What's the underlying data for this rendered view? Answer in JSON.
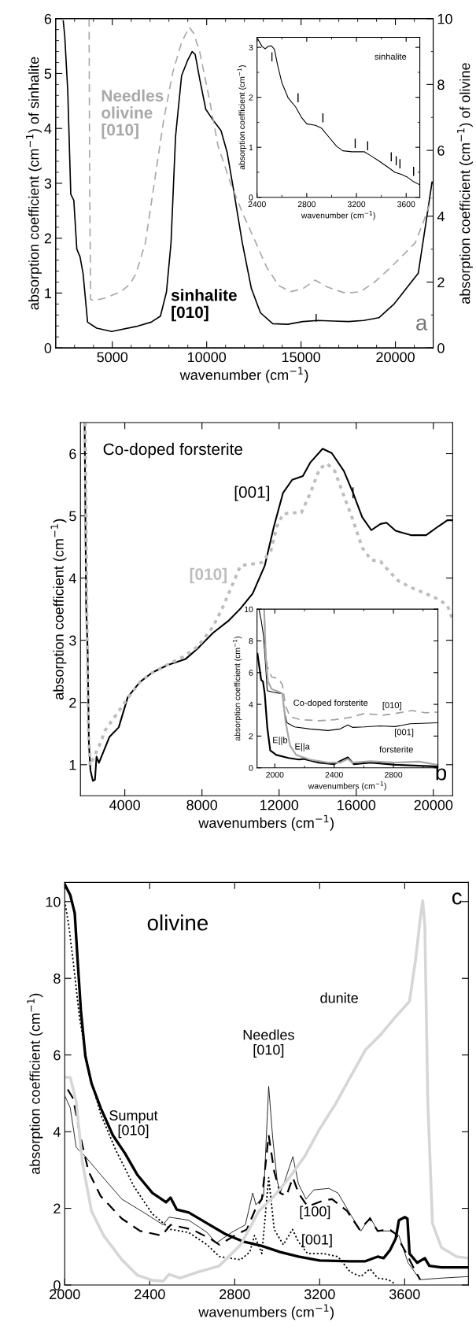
{
  "chart_data": [
    {
      "type": "line",
      "xlabel": "wavenumber (cm$^{−1}$)",
      "ylabel": "absorption coefficient (cm$^{−1}$) of sinhalite",
      "y2label": "absorption coefficient (cm$^{−1}$) of olivine",
      "xlim": [
        2000,
        22000
      ],
      "ylim": [
        0,
        6
      ],
      "y2lim": [
        0,
        10
      ],
      "xticks": [
        {
          "value": 3000,
          "label": null
        },
        {
          "value": 4000,
          "label": null
        },
        5000,
        {
          "value": 6000,
          "label": null
        },
        {
          "value": 7000,
          "label": null
        },
        {
          "value": 8000,
          "label": null
        },
        {
          "value": 9000,
          "label": null
        },
        10000,
        {
          "value": 11000,
          "label": null
        },
        {
          "value": 12000,
          "label": null
        },
        {
          "value": 13000,
          "label": null
        },
        {
          "value": 14000,
          "label": null
        },
        15000,
        {
          "value": 16000,
          "label": null
        },
        {
          "value": 17000,
          "label": null
        },
        {
          "value": 18000,
          "label": null
        },
        {
          "value": 19000,
          "label": null
        },
        20000,
        {
          "value": 21000,
          "label": null
        }
      ],
      "yticks": [
        0,
        {
          "value": 0.2,
          "label": null
        },
        {
          "value": 0.4,
          "label": null
        },
        {
          "value": 0.6,
          "label": null
        },
        {
          "value": 0.8,
          "label": null
        },
        1,
        {
          "value": 1.2,
          "label": null
        },
        {
          "value": 1.4,
          "label": null
        },
        {
          "value": 1.6,
          "label": null
        },
        {
          "value": 1.8,
          "label": null
        },
        2,
        {
          "value": 2.2,
          "label": null
        },
        {
          "value": 2.4,
          "label": null
        },
        {
          "value": 2.6,
          "label": null
        },
        {
          "value": 2.8,
          "label": null
        },
        3,
        {
          "value": 3.2,
          "label": null
        },
        {
          "value": 3.4,
          "label": null
        },
        {
          "value": 3.6,
          "label": null
        },
        {
          "value": 3.8,
          "label": null
        },
        4,
        {
          "value": 4.2,
          "label": null
        },
        {
          "value": 4.4,
          "label": null
        },
        {
          "value": 4.6,
          "label": null
        },
        {
          "value": 4.8,
          "label": null
        },
        5,
        {
          "value": 5.2,
          "label": null
        },
        {
          "value": 5.4,
          "label": null
        },
        {
          "value": 5.6,
          "label": null
        },
        {
          "value": 5.8,
          "label": null
        },
        6
      ],
      "y2ticks": [
        0,
        {
          "value": 1,
          "label": null
        },
        2,
        {
          "value": 3,
          "label": null
        },
        4,
        {
          "value": 5,
          "label": null
        },
        6,
        {
          "value": 7,
          "label": null
        },
        8,
        {
          "value": 9,
          "label": null
        },
        10
      ],
      "series": [
        {
          "name": "sinhalite\n[010]",
          "color": "#000000",
          "line_style": "solid",
          "x": [
            2400,
            2480,
            2640,
            2800,
            2960,
            3120,
            3290,
            3450,
            3690,
            4170,
            4970,
            6260,
            7060,
            7550,
            7870,
            8110,
            8350,
            8670,
            8990,
            9230,
            9390,
            9630,
            9950,
            10280,
            10760,
            11080,
            11410,
            11890,
            12370,
            12850,
            13500,
            14300,
            15100,
            15910,
            16710,
            17520,
            18320,
            19120,
            19930,
            20570,
            21210,
            21700,
            21940
          ],
          "values": [
            5.96,
            5.68,
            4.68,
            2.8,
            2.69,
            1.8,
            1.66,
            1.36,
            0.47,
            0.36,
            0.3,
            0.39,
            0.47,
            0.58,
            1.02,
            1.91,
            3.85,
            4.96,
            5.24,
            5.4,
            5.35,
            4.9,
            4.35,
            4.18,
            3.96,
            3.57,
            2.91,
            1.91,
            1.08,
            0.64,
            0.44,
            0.43,
            0.48,
            0.5,
            0.49,
            0.48,
            0.5,
            0.55,
            0.8,
            1.08,
            1.36,
            2.47,
            3.02
          ]
        },
        {
          "name": "Needles\nolivine\n[010]",
          "color": "#a8a8a8",
          "line_style": "dashed",
          "axis": "y2",
          "x": [
            3770,
            3800,
            3850,
            4010,
            4650,
            5460,
            5940,
            6260,
            6750,
            7230,
            7710,
            8200,
            8670,
            9070,
            9310,
            9630,
            10120,
            10600,
            11250,
            11890,
            12540,
            13180,
            13820,
            14470,
            15100,
            15750,
            16390,
            17360,
            18160,
            18960,
            19760,
            20410,
            21050,
            21540,
            21940
          ],
          "values": [
            10.0,
            5.03,
            1.48,
            1.43,
            1.52,
            1.71,
            1.94,
            2.26,
            3.19,
            5.03,
            6.88,
            8.36,
            9.28,
            9.74,
            9.56,
            9.0,
            7.62,
            6.14,
            5.03,
            4.11,
            3.28,
            2.45,
            1.89,
            1.71,
            1.8,
            2.06,
            1.85,
            1.66,
            1.71,
            2.03,
            2.45,
            2.82,
            3.19,
            3.92,
            4.57
          ]
        },
        {
          "line_style": "solid",
          "color": "#000000",
          "x": [
            15800,
            15800
          ],
          "values": [
            0.49,
            0.61
          ]
        }
      ],
      "annotations": [
        "a"
      ]
    },
    {
      "type": "line",
      "xlabel": "wavenumber (cm$^{−1}$)",
      "ylabel": "absorption coefficient (cm$^{−1}$)",
      "xlim": [
        2400,
        3710
      ],
      "ylim": [
        0,
        3.2
      ],
      "xticks": [
        2400,
        {
          "value": 2600,
          "label": null
        },
        2800,
        {
          "value": 3000,
          "label": null
        },
        3200,
        {
          "value": 3400,
          "label": null
        },
        3600
      ],
      "yticks": [
        0,
        {
          "value": 0.5,
          "label": null
        },
        1,
        {
          "value": 1.5,
          "label": null
        },
        2,
        {
          "value": 2.5,
          "label": null
        },
        3
      ],
      "series": [
        {
          "color": "#000000",
          "line_style": "solid",
          "x": [
            2405,
            2440,
            2465,
            2490,
            2515,
            2540,
            2565,
            2600,
            2650,
            2710,
            2760,
            2800,
            2870,
            2920,
            2980,
            3040,
            3090,
            3165,
            3265,
            3310,
            3385,
            3460,
            3510,
            3560,
            3605,
            3655,
            3710
          ],
          "values": [
            3.17,
            3.02,
            2.97,
            3.02,
            3.03,
            2.96,
            2.65,
            2.29,
            1.99,
            1.81,
            1.59,
            1.47,
            1.44,
            1.38,
            1.2,
            1.02,
            0.93,
            0.91,
            0.91,
            0.84,
            0.72,
            0.59,
            0.5,
            0.46,
            0.41,
            0.32,
            0.25
          ]
        },
        {
          "line_style": "solid",
          "color": "#000000",
          "x": [
            2520,
            2520
          ],
          "values": [
            2.73,
            2.89
          ]
        },
        {
          "line_style": "solid",
          "color": "#000000",
          "x": [
            2730,
            2730
          ],
          "values": [
            1.91,
            2.07
          ]
        },
        {
          "line_style": "solid",
          "color": "#000000",
          "x": [
            2930,
            2930
          ],
          "values": [
            1.51,
            1.67
          ]
        },
        {
          "line_style": "solid",
          "color": "#000000",
          "x": [
            3190,
            3190
          ],
          "values": [
            1.0,
            1.16
          ]
        },
        {
          "line_style": "solid",
          "color": "#000000",
          "x": [
            3290,
            3290
          ],
          "values": [
            0.95,
            1.11
          ]
        },
        {
          "line_style": "solid",
          "color": "#000000",
          "x": [
            3480,
            3480
          ],
          "values": [
            0.73,
            0.89
          ]
        },
        {
          "line_style": "solid",
          "color": "#000000",
          "x": [
            3520,
            3520
          ],
          "values": [
            0.65,
            0.81
          ]
        },
        {
          "line_style": "solid",
          "color": "#000000",
          "x": [
            3550,
            3550
          ],
          "values": [
            0.59,
            0.75
          ]
        },
        {
          "line_style": "solid",
          "color": "#000000",
          "x": [
            3660,
            3660
          ],
          "values": [
            0.44,
            0.6
          ]
        }
      ],
      "annotations": [
        "sinhalite"
      ]
    },
    {
      "type": "line",
      "xlabel": "wavenumbers (cm$^{−1}$)",
      "ylabel": "absorption coefficient (cm$^{−1}$)",
      "xlim": [
        1700,
        21000
      ],
      "ylim": [
        0.5,
        6.5
      ],
      "xticks": [
        4000,
        8000,
        12000,
        16000,
        20000
      ],
      "yticks": [
        1,
        2,
        3,
        4,
        5,
        6
      ],
      "series": [
        {
          "name": "[001]",
          "color": "#000000",
          "line_style": "solid",
          "x": [
            1917,
            1996,
            2075,
            2138,
            2218,
            2344,
            2454,
            2533,
            2659,
            2896,
            3211,
            3684,
            4158,
            4789,
            5420,
            6209,
            7155,
            7787,
            8576,
            9365,
            9996,
            10627,
            11258,
            11732,
            12205,
            12679,
            13231,
            13625,
            14256,
            14730,
            15361,
            15834,
            16307,
            16781,
            17254,
            17570,
            18043,
            18832,
            19621,
            20252,
            20726,
            21000
          ],
          "values": [
            6.5,
            3.56,
            2.82,
            1.35,
            0.91,
            0.74,
            0.76,
            1.13,
            1.03,
            1.21,
            1.45,
            1.6,
            2.09,
            2.33,
            2.48,
            2.6,
            2.7,
            2.87,
            3.12,
            3.31,
            3.51,
            3.75,
            4.2,
            4.83,
            5.37,
            5.58,
            5.64,
            5.86,
            6.08,
            6.01,
            5.72,
            5.37,
            4.98,
            4.77,
            4.87,
            4.89,
            4.76,
            4.69,
            4.69,
            4.83,
            4.93,
            4.93
          ]
        },
        {
          "name": "[010]",
          "color": "#bdbdbd",
          "line_style": "dotted",
          "x": [
            1950,
            2028,
            2107,
            2202,
            2738,
            2975,
            3527,
            4316,
            4789,
            5420,
            6998,
            7787,
            8576,
            9049,
            9523,
            9996,
            10469,
            11100,
            11574,
            11889,
            12205,
            12679,
            13152,
            13625,
            14099,
            14493,
            14887,
            15361,
            15834,
            16307,
            16781,
            17254,
            17728,
            18201,
            18832,
            19621,
            20252,
            20726,
            20962
          ],
          "values": [
            6.5,
            3.56,
            1.6,
            0.99,
            1.35,
            1.55,
            1.79,
            2.14,
            2.33,
            2.48,
            2.73,
            2.9,
            3.22,
            3.51,
            3.85,
            4.2,
            4.22,
            4.25,
            4.44,
            4.83,
            5.03,
            5.05,
            5.05,
            5.37,
            5.76,
            5.84,
            5.72,
            5.32,
            4.93,
            4.49,
            4.29,
            4.27,
            4.1,
            3.95,
            3.85,
            3.75,
            3.66,
            3.56,
            3.36
          ]
        },
        {
          "line_style": "solid",
          "color": "#000000",
          "x": [
            15834,
            15834
          ],
          "values": [
            5.29,
            5.45
          ]
        }
      ],
      "annotations": [
        "Co-doped forsterite",
        "b"
      ]
    },
    {
      "type": "line",
      "xlabel": "wavenumbers (cm$^{−1}$)",
      "ylabel": "absorption coefficient (cm$^{−1}$)",
      "xlim": [
        1880,
        3100
      ],
      "ylim": [
        0,
        10
      ],
      "xticks": [
        2000,
        {
          "value": 2200,
          "label": null
        },
        2400,
        {
          "value": 2600,
          "label": null
        },
        2800,
        {
          "value": 3000,
          "label": null
        }
      ],
      "yticks": [
        0,
        2,
        4,
        6,
        8,
        10
      ],
      "series": [
        {
          "name": "[001]",
          "color": "#000000",
          "line_style": "solid",
          "x": [
            1893,
            1908,
            1924,
            1938,
            1949,
            1990,
            2051,
            2062,
            2082,
            2133,
            2236,
            2359,
            2441,
            2492,
            2523,
            2605,
            2708,
            2810,
            2913,
            3097
          ],
          "values": [
            10,
            9.3,
            8.3,
            6.4,
            4.86,
            4.76,
            4.67,
            3.7,
            2.84,
            2.58,
            2.45,
            2.35,
            2.45,
            2.7,
            2.55,
            2.58,
            2.64,
            2.6,
            2.78,
            2.84
          ]
        },
        {
          "name": "[010]",
          "color": "#a0a0a0",
          "line_style": "dashed",
          "x": [
            1928,
            1938,
            1949,
            1979,
            2021,
            2051,
            2072,
            2103,
            2174,
            2297,
            2400,
            2503,
            2605,
            2728,
            2810,
            2923,
            3015,
            3097
          ],
          "values": [
            10,
            7.37,
            6.4,
            5.73,
            5.64,
            5.25,
            3.9,
            3.22,
            3.03,
            2.97,
            3.03,
            3.17,
            3.42,
            3.32,
            3.42,
            3.61,
            3.47,
            3.51
          ]
        },
        {
          "name": "E||b",
          "color": "#000000",
          "line_style": "solid",
          "x": [
            1883,
            1908,
            1920,
            1932,
            1949,
            1969,
            2010,
            2092,
            2164,
            2195,
            2297,
            2400,
            2492,
            2533,
            2646,
            2810,
            3097
          ],
          "values": [
            7.18,
            5.54,
            5.44,
            4.67,
            2.55,
            1.1,
            0.81,
            0.62,
            0.52,
            0.56,
            0.33,
            0.23,
            0.66,
            0.23,
            0.33,
            0.19,
            0.08
          ]
        },
        {
          "name": "E||a",
          "color": "#a8a8a8",
          "line_style": "solid",
          "x": [
            1928,
            1938,
            1953,
            1979,
            2031,
            2051,
            2072,
            2103,
            2144,
            2236,
            2359,
            2441,
            2492,
            2523,
            2646,
            2810,
            2974,
            3097
          ],
          "values": [
            10,
            7.18,
            5.44,
            4.96,
            4.77,
            4.67,
            2.93,
            1.39,
            0.81,
            0.52,
            0.33,
            0.33,
            0.56,
            0.33,
            0.42,
            0.33,
            0.39,
            0.19
          ]
        }
      ],
      "annotations": [
        "Co-doped forsterite",
        "forsterite"
      ]
    },
    {
      "type": "line",
      "xlabel": "wavenumbers (cm$^{−1}$)",
      "ylabel": "absorption coefficient (cm$^{−1}$)",
      "xlim": [
        2000,
        3900
      ],
      "ylim": [
        0,
        10.5
      ],
      "xticks": [
        2000,
        2400,
        2800,
        3200,
        3600
      ],
      "yticks": [
        0,
        2,
        4,
        6,
        8,
        10
      ],
      "series": [
        {
          "name": "Sumput\n[010]",
          "color": "#000000",
          "line_style": "solid",
          "x": [
            2000,
            2026,
            2047,
            2062,
            2076,
            2097,
            2126,
            2169,
            2226,
            2284,
            2341,
            2413,
            2477,
            2498,
            2527,
            2584,
            2670,
            2756,
            2842,
            2928,
            3014,
            3100,
            3200,
            3344,
            3415,
            3473,
            3501,
            3530,
            3558,
            3573,
            3587,
            3601,
            3613,
            3623,
            3659,
            3695,
            3716,
            3773,
            3900
          ],
          "values": [
            10.45,
            10.17,
            9.7,
            8.35,
            7.16,
            5.97,
            5.26,
            4.62,
            3.91,
            3.43,
            2.88,
            2.4,
            2.16,
            2.28,
            1.97,
            1.89,
            1.61,
            1.33,
            1.13,
            1.02,
            0.86,
            0.74,
            0.64,
            0.62,
            0.62,
            0.74,
            0.7,
            0.9,
            1.21,
            1.69,
            1.73,
            1.77,
            1.73,
            0.82,
            0.58,
            0.7,
            0.5,
            0.46,
            0.46
          ]
        },
        {
          "name": "Needles\n[010]",
          "color": "#000000",
          "line_style": "solid",
          "x": [
            2000,
            2026,
            2054,
            2097,
            2169,
            2269,
            2384,
            2463,
            2491,
            2584,
            2670,
            2713,
            2785,
            2850,
            2885,
            2900,
            2936,
            2960,
            2979,
            3000,
            3014,
            3036,
            3074,
            3100,
            3136,
            3172,
            3243,
            3286,
            3344,
            3394,
            3437,
            3473,
            3530,
            3573,
            3616,
            3673,
            3773,
            3900
          ],
          "values": [
            4.94,
            4.62,
            3.59,
            3.35,
            2.88,
            2.24,
            1.85,
            1.57,
            1.77,
            1.69,
            1.37,
            1.09,
            1.37,
            1.57,
            2.4,
            2.09,
            2.32,
            5.18,
            3.83,
            2.72,
            2.4,
            2.72,
            3.35,
            2.64,
            2.24,
            2.48,
            2.52,
            2.4,
            1.85,
            1.41,
            1.77,
            1.41,
            1.41,
            1.29,
            0.58,
            0.14,
            0.18,
            0.22
          ]
        },
        {
          "name": "[100]",
          "color": "#000000",
          "line_style": "dashed",
          "x": [
            2014,
            2040,
            2069,
            2112,
            2169,
            2269,
            2355,
            2456,
            2499,
            2599,
            2685,
            2728,
            2800,
            2857,
            2900,
            2928,
            2960,
            2986,
            3014,
            3043,
            3074,
            3100,
            3143,
            3215,
            3258,
            3329,
            3387,
            3437,
            3473,
            3530,
            3558,
            3601,
            3645,
            3673
          ],
          "values": [
            5.1,
            4.86,
            3.99,
            2.96,
            2.32,
            1.73,
            1.41,
            1.29,
            1.57,
            1.45,
            1.21,
            1.05,
            1.29,
            1.45,
            2.01,
            2.24,
            3.91,
            2.96,
            2.4,
            2.32,
            2.8,
            2.4,
            2.05,
            2.2,
            2.24,
            1.93,
            1.45,
            1.73,
            1.41,
            1.45,
            1.33,
            0.9,
            0.42,
            0.14
          ]
        },
        {
          "name": "[001]",
          "color": "#000000",
          "line_style": "dotted",
          "x": [
            2000,
            2019,
            2040,
            2069,
            2112,
            2169,
            2241,
            2327,
            2413,
            2499,
            2584,
            2670,
            2728,
            2828,
            2871,
            2893,
            2928,
            2960,
            2986,
            3029,
            3072,
            3100,
            3143,
            3215,
            3286,
            3344,
            3394,
            3437,
            3473,
            3523,
            3558
          ],
          "values": [
            10.02,
            9.38,
            8.43,
            7.0,
            5.57,
            4.46,
            3.51,
            2.56,
            1.85,
            1.45,
            1.37,
            1.05,
            0.74,
            0.66,
            0.86,
            1.29,
            0.82,
            2.8,
            1.45,
            1.05,
            1.45,
            1.13,
            0.82,
            0.82,
            0.74,
            0.34,
            0.22,
            0.42,
            0.18,
            0.14,
            0.02
          ]
        },
        {
          "name": "dunite",
          "color": "#d6d6d6",
          "line_style": "solid",
          "x": [
            2000,
            2026,
            2054,
            2083,
            2126,
            2183,
            2269,
            2341,
            2413,
            2463,
            2491,
            2542,
            2628,
            2728,
            2828,
            2914,
            2986,
            3057,
            3129,
            3200,
            3272,
            3344,
            3415,
            3487,
            3558,
            3623,
            3652,
            3673,
            3685,
            3695,
            3709,
            3731,
            3773,
            3845,
            3900
          ],
          "values": [
            5.42,
            5.42,
            4.78,
            3.2,
            1.93,
            1.29,
            0.66,
            0.26,
            0.12,
            0.1,
            0.28,
            0.18,
            0.34,
            0.5,
            1.05,
            1.93,
            2.32,
            2.8,
            3.35,
            4.07,
            4.7,
            5.42,
            6.13,
            6.53,
            7.0,
            7.4,
            8.51,
            9.54,
            10.02,
            9.38,
            4.78,
            1.61,
            0.98,
            0.74,
            0.7
          ]
        }
      ],
      "annotations": [
        "olivine",
        "c"
      ]
    }
  ]
}
